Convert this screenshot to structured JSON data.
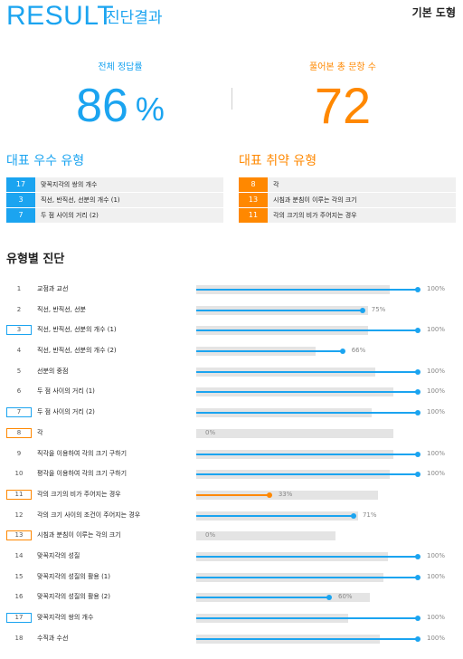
{
  "header": {
    "title": "RESULT",
    "subtitle": "진단결과",
    "badge": "기본 도형"
  },
  "stats": {
    "accuracy_label": "전체 정답률",
    "accuracy_value": "86",
    "accuracy_unit": "%",
    "count_label": "풀어본 총 문항 수",
    "count_value": "72"
  },
  "strong": {
    "title": "대표 우수 유형",
    "items": [
      {
        "num": "17",
        "label": "맞꼭지각의 쌍의 개수"
      },
      {
        "num": "3",
        "label": "직선, 반직선, 선분의 개수 (1)"
      },
      {
        "num": "7",
        "label": "두 점 사이의 거리 (2)"
      }
    ]
  },
  "weak": {
    "title": "대표 취약 유형",
    "items": [
      {
        "num": "8",
        "label": "각"
      },
      {
        "num": "13",
        "label": "시침과 분침이 이루는 각의 크기"
      },
      {
        "num": "11",
        "label": "각의 크기의 비가 주어지는 경우"
      }
    ]
  },
  "diagnosis": {
    "title": "유형별 진단",
    "rows": [
      {
        "index": "1",
        "label": "교점과 교선",
        "percent": 100,
        "percent_label": "100%",
        "mark": "none",
        "track_length": 0.97
      },
      {
        "index": "2",
        "label": "직선, 반직선, 선분",
        "percent": 75,
        "percent_label": "75%",
        "mark": "none",
        "track_length": 0.86
      },
      {
        "index": "3",
        "label": "직선, 반직선, 선분의 개수 (1)",
        "percent": 100,
        "percent_label": "100%",
        "mark": "strong",
        "track_length": 0.86
      },
      {
        "index": "4",
        "label": "직선, 반직선, 선분의 개수 (2)",
        "percent": 66,
        "percent_label": "66%",
        "mark": "none",
        "track_length": 0.6
      },
      {
        "index": "5",
        "label": "선분의 중점",
        "percent": 100,
        "percent_label": "100%",
        "mark": "none",
        "track_length": 0.9
      },
      {
        "index": "6",
        "label": "두 점 사이의 거리 (1)",
        "percent": 100,
        "percent_label": "100%",
        "mark": "none",
        "track_length": 0.99
      },
      {
        "index": "7",
        "label": "두 점 사이의 거리 (2)",
        "percent": 100,
        "percent_label": "100%",
        "mark": "strong",
        "track_length": 0.88
      },
      {
        "index": "8",
        "label": "각",
        "percent": 0,
        "percent_label": "0%",
        "mark": "weak",
        "track_length": 0.99
      },
      {
        "index": "9",
        "label": "직각을 이용하여 각의 크기 구하기",
        "percent": 100,
        "percent_label": "100%",
        "mark": "none",
        "track_length": 0.99
      },
      {
        "index": "10",
        "label": "평각을 이용하여 각의 크기 구하기",
        "percent": 100,
        "percent_label": "100%",
        "mark": "none",
        "track_length": 0.97
      },
      {
        "index": "11",
        "label": "각의 크기의 비가 주어지는 경우",
        "percent": 33,
        "percent_label": "33%",
        "mark": "weak",
        "track_length": 0.91
      },
      {
        "index": "12",
        "label": "각의 크기 사이의 조건이 주어지는 경우",
        "percent": 71,
        "percent_label": "71%",
        "mark": "none",
        "track_length": 0.81
      },
      {
        "index": "13",
        "label": "시침과 분침이 이루는 각의 크기",
        "percent": 0,
        "percent_label": "0%",
        "mark": "weak",
        "track_length": 0.7
      },
      {
        "index": "14",
        "label": "맞꼭지각의 성질",
        "percent": 100,
        "percent_label": "100%",
        "mark": "none",
        "track_length": 0.96
      },
      {
        "index": "15",
        "label": "맞꼭지각의 성질의 활용 (1)",
        "percent": 100,
        "percent_label": "100%",
        "mark": "none",
        "track_length": 0.94
      },
      {
        "index": "16",
        "label": "맞꼭지각의 성질의 활용 (2)",
        "percent": 60,
        "percent_label": "60%",
        "mark": "none",
        "track_length": 0.87
      },
      {
        "index": "17",
        "label": "맞꼭지각의 쌍의 개수",
        "percent": 100,
        "percent_label": "100%",
        "mark": "strong",
        "track_length": 0.76
      },
      {
        "index": "18",
        "label": "수직과 수선",
        "percent": 100,
        "percent_label": "100%",
        "mark": "none",
        "track_length": 0.92
      }
    ]
  },
  "colors": {
    "accent_blue": "#1ba4f0",
    "accent_orange": "#ff8800",
    "track_gray": "#e4e4e4"
  }
}
